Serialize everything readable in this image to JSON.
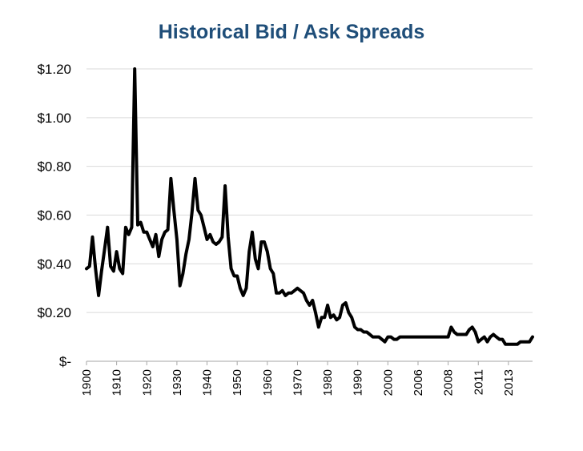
{
  "chart_data": {
    "type": "line",
    "title": "Historical Bid / Ask Spreads",
    "xlabel": "",
    "ylabel": "",
    "ylim": [
      0,
      1.2
    ],
    "grid": true,
    "legend": "none",
    "line_color": "#000000",
    "title_color": "#1f4e79",
    "y_ticks": [
      {
        "value": 0,
        "label": "$-"
      },
      {
        "value": 0.2,
        "label": "$0.20"
      },
      {
        "value": 0.4,
        "label": "$0.40"
      },
      {
        "value": 0.6,
        "label": "$0.60"
      },
      {
        "value": 0.8,
        "label": "$0.80"
      },
      {
        "value": 1.0,
        "label": "$1.00"
      },
      {
        "value": 1.2,
        "label": "$1.20"
      }
    ],
    "x_tick_labels": [
      "1900",
      "1910",
      "1920",
      "1930",
      "1940",
      "1950",
      "1960",
      "1970",
      "1980",
      "1990",
      "2000",
      "2006",
      "2008",
      "2011",
      "2013"
    ],
    "x_tick_positions": [
      0,
      10,
      20,
      30,
      40,
      50,
      60,
      70,
      80,
      90,
      100,
      110,
      120,
      130,
      140
    ],
    "series": [
      {
        "values": [
          0.38,
          0.39,
          0.51,
          0.38,
          0.27,
          0.37,
          0.46,
          0.55,
          0.39,
          0.37,
          0.45,
          0.38,
          0.36,
          0.55,
          0.52,
          0.55,
          1.2,
          0.56,
          0.57,
          0.53,
          0.53,
          0.5,
          0.47,
          0.52,
          0.43,
          0.5,
          0.53,
          0.54,
          0.75,
          0.62,
          0.5,
          0.31,
          0.36,
          0.44,
          0.5,
          0.61,
          0.75,
          0.62,
          0.6,
          0.55,
          0.5,
          0.52,
          0.49,
          0.48,
          0.49,
          0.51,
          0.72,
          0.51,
          0.38,
          0.35,
          0.35,
          0.3,
          0.27,
          0.3,
          0.45,
          0.53,
          0.42,
          0.38,
          0.49,
          0.49,
          0.45,
          0.38,
          0.36,
          0.28,
          0.28,
          0.29,
          0.27,
          0.28,
          0.28,
          0.29,
          0.3,
          0.29,
          0.28,
          0.25,
          0.23,
          0.25,
          0.2,
          0.14,
          0.18,
          0.18,
          0.23,
          0.18,
          0.19,
          0.17,
          0.18,
          0.23,
          0.24,
          0.2,
          0.18,
          0.14,
          0.13,
          0.13,
          0.12,
          0.12,
          0.11,
          0.1,
          0.1,
          0.1,
          0.09,
          0.08,
          0.1,
          0.1,
          0.09,
          0.09,
          0.1,
          0.1,
          0.1,
          0.1,
          0.1,
          0.1,
          0.1,
          0.1,
          0.1,
          0.1,
          0.1,
          0.1,
          0.1,
          0.1,
          0.1,
          0.1,
          0.1,
          0.14,
          0.12,
          0.11,
          0.11,
          0.11,
          0.11,
          0.13,
          0.14,
          0.12,
          0.08,
          0.09,
          0.1,
          0.08,
          0.1,
          0.11,
          0.1,
          0.09,
          0.09,
          0.07,
          0.07,
          0.07,
          0.07,
          0.07,
          0.08,
          0.08,
          0.08,
          0.08,
          0.1
        ]
      }
    ]
  }
}
